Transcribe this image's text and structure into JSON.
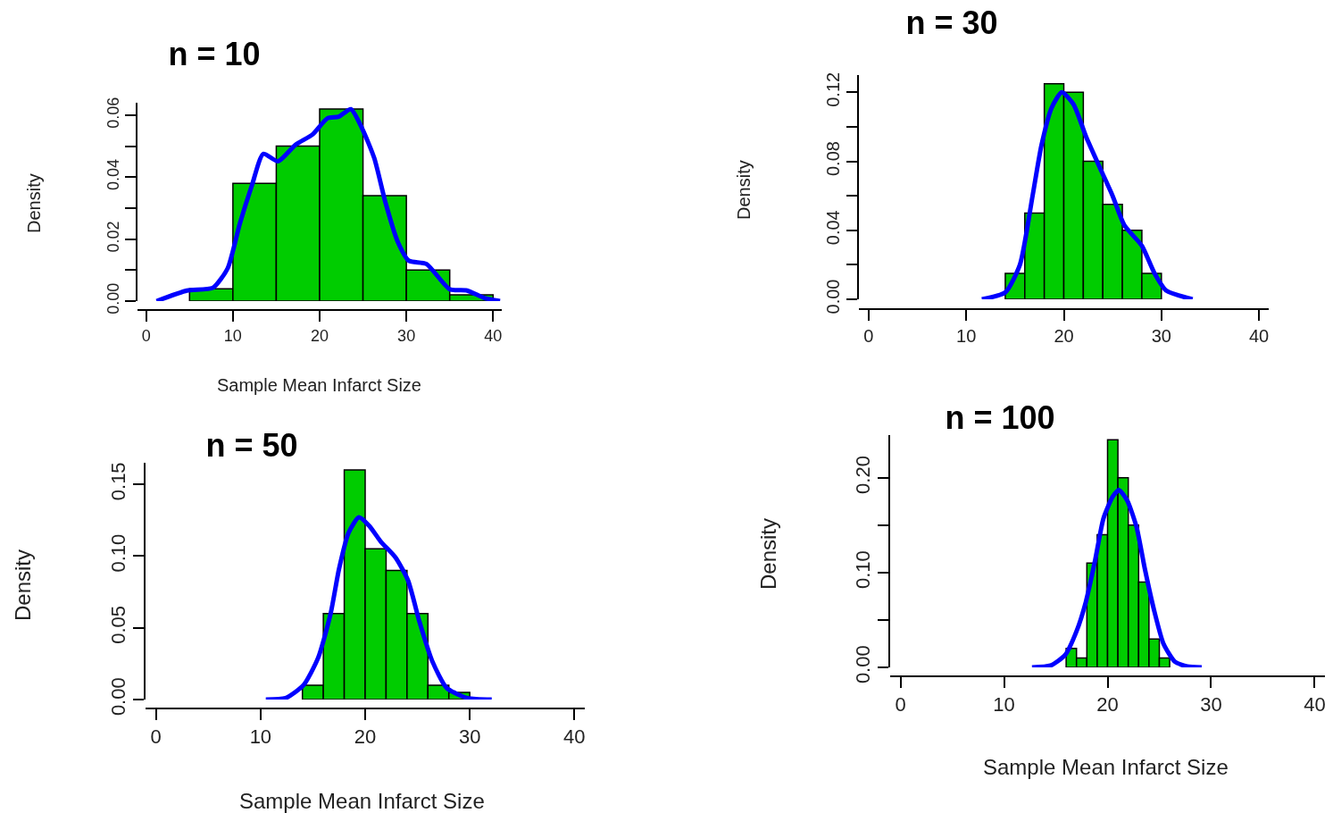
{
  "chart_data": [
    {
      "type": "histogram",
      "title": "n = 10",
      "xlabel": "Sample Mean Infarct Size",
      "ylabel": "Density",
      "xlim": [
        -1,
        41
      ],
      "xticks": [
        0,
        10,
        20,
        30,
        40
      ],
      "ylim": [
        0,
        0.064
      ],
      "yticks": [
        {
          "value": 0,
          "label": "0.00"
        },
        {
          "value": 0.01,
          "label": null
        },
        {
          "value": 0.02,
          "label": "0.02"
        },
        {
          "value": 0.03,
          "label": null
        },
        {
          "value": 0.04,
          "label": "0.04"
        },
        {
          "value": 0.05,
          "label": null
        },
        {
          "value": 0.06,
          "label": "0.06"
        }
      ],
      "series": [
        {
          "color": "#00cc00",
          "bins": [
            5,
            10,
            15,
            20,
            25,
            30,
            35,
            40
          ],
          "values": [
            0.004,
            0.038,
            0.05,
            0.062,
            0.034,
            0.01,
            0.002
          ]
        },
        {
          "type": "line",
          "color": "#0000ff",
          "x": [
            1.2,
            4.7,
            7.7,
            9.4,
            10.8,
            12.2,
            13.5,
            15.2,
            17.2,
            19.2,
            20.9,
            22.2,
            23.6,
            24.9,
            26.3,
            27.6,
            29.0,
            30.3,
            32.3,
            35.0,
            37.0,
            39.0,
            40.8
          ],
          "values": [
            0,
            0.0034,
            0.0043,
            0.0106,
            0.025,
            0.0374,
            0.0475,
            0.0451,
            0.0504,
            0.0538,
            0.059,
            0.0595,
            0.0619,
            0.0557,
            0.0461,
            0.0317,
            0.0192,
            0.013,
            0.012,
            0.0038,
            0.0034,
            0.001,
            0
          ]
        }
      ]
    },
    {
      "type": "histogram",
      "title": "n = 30",
      "ylabel": "Density",
      "xlim": [
        -1,
        41
      ],
      "xticks": [
        0,
        10,
        20,
        30,
        40
      ],
      "ylim": [
        0,
        0.13
      ],
      "yticks": [
        {
          "value": 0,
          "label": "0.00"
        },
        {
          "value": 0.02,
          "label": null
        },
        {
          "value": 0.04,
          "label": "0.04"
        },
        {
          "value": 0.06,
          "label": null
        },
        {
          "value": 0.08,
          "label": "0.08"
        },
        {
          "value": 0.1,
          "label": null
        },
        {
          "value": 0.12,
          "label": "0.12"
        }
      ],
      "series": [
        {
          "color": "#00cc00",
          "bins": [
            14,
            16,
            18,
            20,
            22,
            24,
            26,
            28,
            30
          ],
          "values": [
            0.015,
            0.05,
            0.125,
            0.12,
            0.08,
            0.055,
            0.04,
            0.015
          ]
        },
        {
          "type": "line",
          "color": "#0000ff",
          "x": [
            11.6,
            14.0,
            15.5,
            16.8,
            17.7,
            18.75,
            19.8,
            21.0,
            22.3,
            23.8,
            25.0,
            26.2,
            28.0,
            29.3,
            30.5,
            33.2
          ],
          "values": [
            0,
            0.004,
            0.02,
            0.06,
            0.089,
            0.111,
            0.12,
            0.113,
            0.094,
            0.075,
            0.06,
            0.043,
            0.031,
            0.015,
            0.005,
            0
          ]
        }
      ]
    },
    {
      "type": "histogram",
      "title": "n = 50",
      "xlabel": "Sample Mean Infarct Size",
      "ylabel": "Density",
      "xlim": [
        -1,
        41
      ],
      "xticks": [
        0,
        10,
        20,
        30,
        40
      ],
      "ylim": [
        0,
        0.165
      ],
      "yticks": [
        {
          "value": 0,
          "label": "0.00"
        },
        {
          "value": 0.05,
          "label": "0.05"
        },
        {
          "value": 0.1,
          "label": "0.10"
        },
        {
          "value": 0.15,
          "label": "0.15"
        }
      ],
      "series": [
        {
          "color": "#00cc00",
          "bins": [
            14,
            16,
            18,
            20,
            22,
            24,
            26,
            28,
            30
          ],
          "values": [
            0.01,
            0.06,
            0.16,
            0.105,
            0.09,
            0.06,
            0.01,
            0.005
          ]
        },
        {
          "type": "line",
          "color": "#0000ff",
          "x": [
            10.5,
            12.4,
            14.1,
            15.5,
            16.7,
            17.5,
            18.4,
            19.4,
            20.4,
            21.5,
            22.9,
            24.1,
            25.2,
            26.4,
            27.8,
            29.8,
            32.1
          ],
          "values": [
            0,
            0.001,
            0.01,
            0.029,
            0.06,
            0.091,
            0.116,
            0.127,
            0.121,
            0.11,
            0.099,
            0.083,
            0.054,
            0.027,
            0.008,
            0.001,
            0
          ]
        }
      ]
    },
    {
      "type": "histogram",
      "title": "n = 100",
      "xlabel": "Sample Mean Infarct Size",
      "ylabel": "Density",
      "xlim": [
        -1,
        41
      ],
      "xticks": [
        0,
        10,
        20,
        30,
        40
      ],
      "ylim": [
        0,
        0.245
      ],
      "yticks": [
        {
          "value": 0,
          "label": "0.00"
        },
        {
          "value": 0.05,
          "label": null
        },
        {
          "value": 0.1,
          "label": "0.10"
        },
        {
          "value": 0.15,
          "label": null
        },
        {
          "value": 0.2,
          "label": "0.20"
        }
      ],
      "series": [
        {
          "color": "#00cc00",
          "bins": [
            16,
            17,
            18,
            19,
            20,
            21,
            22,
            23,
            24,
            25,
            26
          ],
          "values": [
            0.02,
            0.01,
            0.11,
            0.14,
            0.24,
            0.2,
            0.15,
            0.09,
            0.03,
            0.01
          ]
        },
        {
          "type": "line",
          "color": "#0000ff",
          "x": [
            12.7,
            14.5,
            15.9,
            17.0,
            17.9,
            18.8,
            19.6,
            20.5,
            21.1,
            21.9,
            22.8,
            23.6,
            24.5,
            25.4,
            26.5,
            27.7,
            29.1
          ],
          "values": [
            0,
            0.002,
            0.013,
            0.038,
            0.069,
            0.113,
            0.157,
            0.18,
            0.187,
            0.176,
            0.148,
            0.104,
            0.06,
            0.025,
            0.006,
            0.001,
            0
          ]
        }
      ]
    }
  ]
}
